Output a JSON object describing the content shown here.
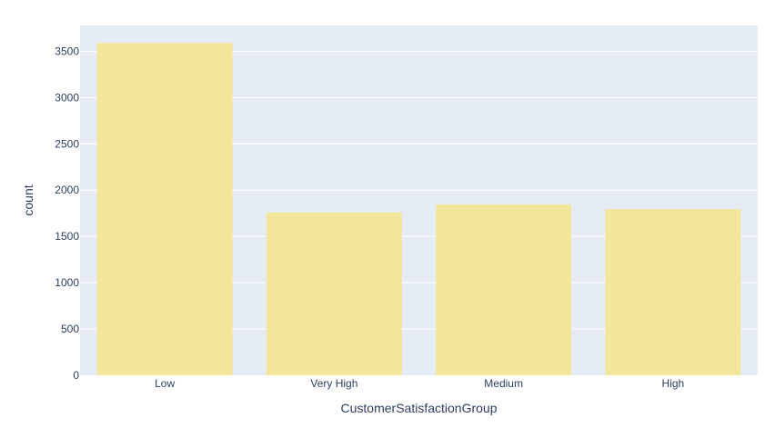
{
  "chart_data": {
    "type": "bar",
    "title": "",
    "xlabel": "CustomerSatisfactionGroup",
    "ylabel": "count",
    "categories": [
      "Low",
      "Very High",
      "Medium",
      "High"
    ],
    "values": [
      3590,
      1760,
      1845,
      1795
    ],
    "yticks": [
      0,
      500,
      1000,
      1500,
      2000,
      2500,
      3000,
      3500
    ],
    "ytick_labels": [
      "0",
      "500",
      "1000",
      "1500",
      "2000",
      "2500",
      "3000",
      "3500"
    ],
    "ylim": [
      0,
      3779
    ],
    "grid": true,
    "legend": "none",
    "colors": {
      "bar": "#f2e69b",
      "plot_background": "#e5ecf6",
      "gridline": "#ffffff",
      "text": "#2a3f5f"
    }
  }
}
